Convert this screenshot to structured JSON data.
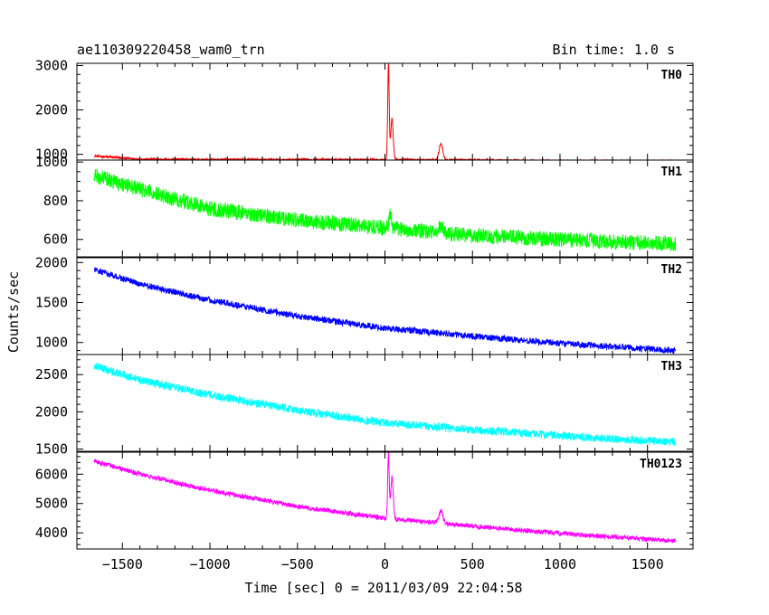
{
  "header": {
    "title": "ae110309220458_wam0_trn",
    "bin_time": "Bin time: 1.0 s"
  },
  "chart_data": {
    "type": "line",
    "xlabel": "Time [sec] 0 = 2011/03/09 22:04:58",
    "ylabel": "Counts/sec",
    "xlim": [
      -1760,
      1760
    ],
    "x_ticks": [
      -1500,
      -1000,
      -500,
      0,
      500,
      1000,
      1500
    ],
    "x_tick_labels": [
      "−1500",
      "−1000",
      "−500",
      "0",
      "500",
      "1000",
      "1500"
    ],
    "x_data_range": [
      -1660,
      1660
    ],
    "bin_time_s": 1.0,
    "panels": [
      {
        "name": "TH0",
        "color": "#ff0000",
        "ylim": [
          870,
          3050
        ],
        "y_ticks": [
          1000,
          2000,
          3000
        ],
        "y_tick_labels": [
          "1000",
          "2000",
          "3000"
        ],
        "trend": [
          [
            -1660,
            960
          ],
          [
            -1400,
            890
          ],
          [
            -1000,
            880
          ],
          [
            -500,
            880
          ],
          [
            0,
            880
          ],
          [
            500,
            870
          ],
          [
            1000,
            850
          ],
          [
            1660,
            840
          ]
        ],
        "noise": 25,
        "features": [
          {
            "t": 20,
            "peak": 3050,
            "width": 6
          },
          {
            "t": 40,
            "peak": 1800,
            "width": 10
          },
          {
            "t": 320,
            "peak": 1240,
            "width": 15
          }
        ]
      },
      {
        "name": "TH1",
        "color": "#00ff00",
        "ylim": [
          510,
          1010
        ],
        "y_ticks": [
          600,
          800,
          1000
        ],
        "y_tick_labels": [
          "600",
          "800",
          "1000"
        ],
        "trend": [
          [
            -1660,
            930
          ],
          [
            -1400,
            860
          ],
          [
            -1000,
            760
          ],
          [
            -500,
            700
          ],
          [
            0,
            660
          ],
          [
            500,
            620
          ],
          [
            1000,
            600
          ],
          [
            1660,
            575
          ]
        ],
        "noise": 40,
        "features": [
          {
            "t": 30,
            "peak": 730,
            "width": 10
          },
          {
            "t": 320,
            "peak": 670,
            "width": 15
          }
        ]
      },
      {
        "name": "TH2",
        "color": "#0000ff",
        "ylim": [
          850,
          2060
        ],
        "y_ticks": [
          1000,
          1500,
          2000
        ],
        "y_tick_labels": [
          "1000",
          "1500",
          "2000"
        ],
        "trend": [
          [
            -1660,
            1910
          ],
          [
            -1400,
            1730
          ],
          [
            -1000,
            1530
          ],
          [
            -500,
            1330
          ],
          [
            0,
            1180
          ],
          [
            500,
            1080
          ],
          [
            1000,
            990
          ],
          [
            1660,
            900
          ]
        ],
        "noise": 40,
        "features": []
      },
      {
        "name": "TH3",
        "color": "#00ffff",
        "ylim": [
          1470,
          2770
        ],
        "y_ticks": [
          1500,
          2000,
          2500
        ],
        "y_tick_labels": [
          "1500",
          "2000",
          "2500"
        ],
        "trend": [
          [
            -1660,
            2620
          ],
          [
            -1400,
            2430
          ],
          [
            -1000,
            2230
          ],
          [
            -500,
            2020
          ],
          [
            0,
            1850
          ],
          [
            500,
            1760
          ],
          [
            1000,
            1680
          ],
          [
            1660,
            1590
          ]
        ],
        "noise": 55,
        "features": []
      },
      {
        "name": "TH0123",
        "color": "#ff00ff",
        "ylim": [
          3450,
          6750
        ],
        "y_ticks": [
          4000,
          5000,
          6000
        ],
        "y_tick_labels": [
          "4000",
          "5000",
          "6000"
        ],
        "trend": [
          [
            -1660,
            6450
          ],
          [
            -1400,
            6000
          ],
          [
            -1000,
            5450
          ],
          [
            -500,
            4900
          ],
          [
            0,
            4500
          ],
          [
            500,
            4230
          ],
          [
            1000,
            3980
          ],
          [
            1660,
            3720
          ]
        ],
        "noise": 80,
        "features": [
          {
            "t": 20,
            "peak": 6750,
            "width": 6
          },
          {
            "t": 40,
            "peak": 5900,
            "width": 10
          },
          {
            "t": 320,
            "peak": 4750,
            "width": 15
          }
        ]
      }
    ]
  }
}
